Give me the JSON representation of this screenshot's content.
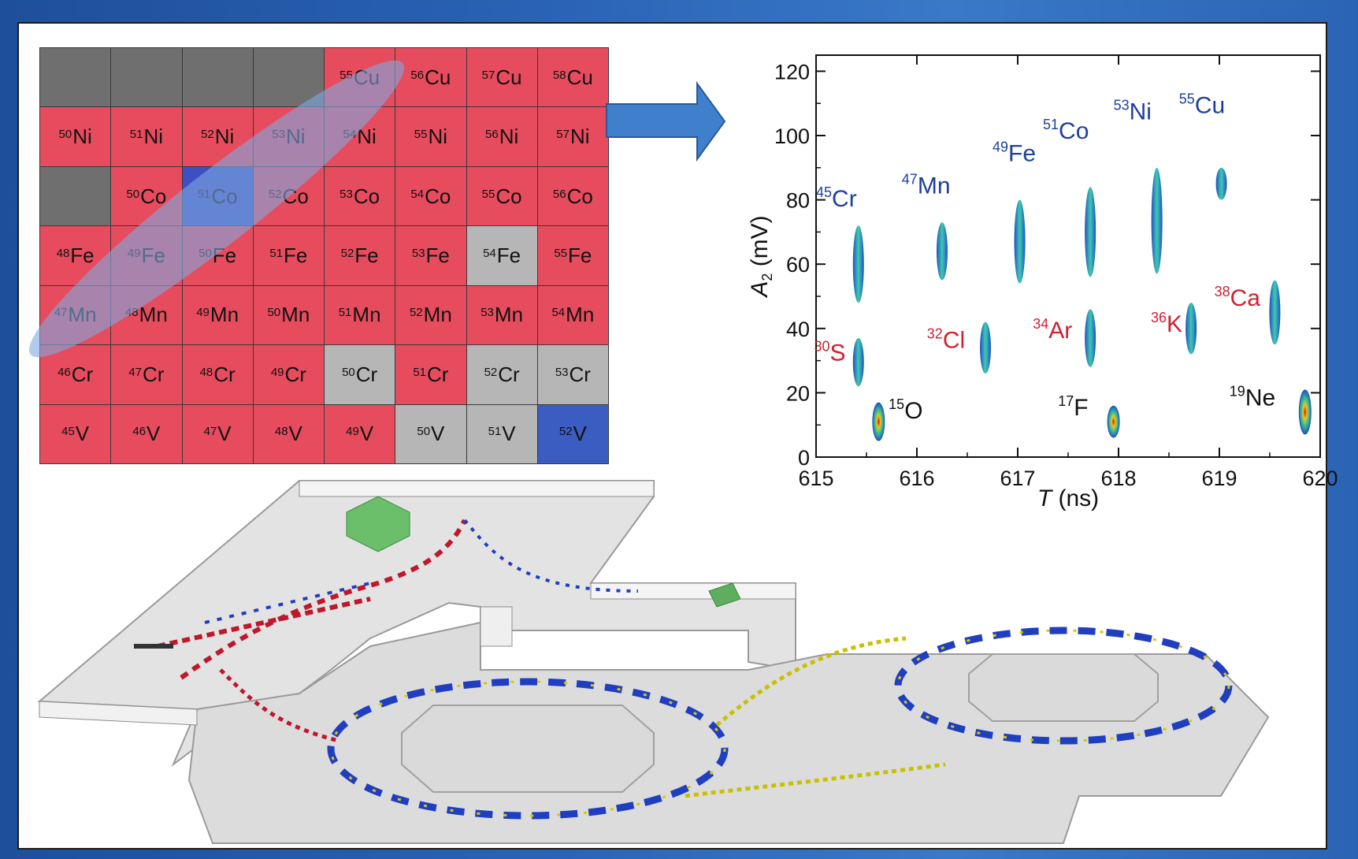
{
  "nuclide_chart": {
    "rows": [
      [
        {
          "a": "",
          "s": "",
          "c": "dark"
        },
        {
          "a": "",
          "s": "",
          "c": "dark"
        },
        {
          "a": "",
          "s": "",
          "c": "dark"
        },
        {
          "a": "",
          "s": "",
          "c": "dark"
        },
        {
          "a": "55",
          "s": "Cu",
          "c": "red"
        },
        {
          "a": "56",
          "s": "Cu",
          "c": "red"
        },
        {
          "a": "57",
          "s": "Cu",
          "c": "red"
        },
        {
          "a": "58",
          "s": "Cu",
          "c": "red"
        }
      ],
      [
        {
          "a": "50",
          "s": "Ni",
          "c": "red"
        },
        {
          "a": "51",
          "s": "Ni",
          "c": "red"
        },
        {
          "a": "52",
          "s": "Ni",
          "c": "red"
        },
        {
          "a": "53",
          "s": "Ni",
          "c": "red"
        },
        {
          "a": "54",
          "s": "Ni",
          "c": "red"
        },
        {
          "a": "55",
          "s": "Ni",
          "c": "red"
        },
        {
          "a": "56",
          "s": "Ni",
          "c": "red"
        },
        {
          "a": "57",
          "s": "Ni",
          "c": "red"
        }
      ],
      [
        {
          "a": "",
          "s": "",
          "c": "dark"
        },
        {
          "a": "50",
          "s": "Co",
          "c": "red"
        },
        {
          "a": "51",
          "s": "Co",
          "c": "blue"
        },
        {
          "a": "52",
          "s": "Co",
          "c": "red"
        },
        {
          "a": "53",
          "s": "Co",
          "c": "red"
        },
        {
          "a": "54",
          "s": "Co",
          "c": "red"
        },
        {
          "a": "55",
          "s": "Co",
          "c": "red"
        },
        {
          "a": "56",
          "s": "Co",
          "c": "red"
        }
      ],
      [
        {
          "a": "48",
          "s": "Fe",
          "c": "red"
        },
        {
          "a": "49",
          "s": "Fe",
          "c": "red"
        },
        {
          "a": "50",
          "s": "Fe",
          "c": "red"
        },
        {
          "a": "51",
          "s": "Fe",
          "c": "red"
        },
        {
          "a": "52",
          "s": "Fe",
          "c": "red"
        },
        {
          "a": "53",
          "s": "Fe",
          "c": "red"
        },
        {
          "a": "54",
          "s": "Fe",
          "c": "light"
        },
        {
          "a": "55",
          "s": "Fe",
          "c": "red"
        }
      ],
      [
        {
          "a": "47",
          "s": "Mn",
          "c": "red"
        },
        {
          "a": "48",
          "s": "Mn",
          "c": "red"
        },
        {
          "a": "49",
          "s": "Mn",
          "c": "red"
        },
        {
          "a": "50",
          "s": "Mn",
          "c": "red"
        },
        {
          "a": "51",
          "s": "Mn",
          "c": "red"
        },
        {
          "a": "52",
          "s": "Mn",
          "c": "red"
        },
        {
          "a": "53",
          "s": "Mn",
          "c": "red"
        },
        {
          "a": "54",
          "s": "Mn",
          "c": "red"
        }
      ],
      [
        {
          "a": "46",
          "s": "Cr",
          "c": "red"
        },
        {
          "a": "47",
          "s": "Cr",
          "c": "red"
        },
        {
          "a": "48",
          "s": "Cr",
          "c": "red"
        },
        {
          "a": "49",
          "s": "Cr",
          "c": "red"
        },
        {
          "a": "50",
          "s": "Cr",
          "c": "light"
        },
        {
          "a": "51",
          "s": "Cr",
          "c": "red"
        },
        {
          "a": "52",
          "s": "Cr",
          "c": "light"
        },
        {
          "a": "53",
          "s": "Cr",
          "c": "light"
        }
      ],
      [
        {
          "a": "45",
          "s": "V",
          "c": "red"
        },
        {
          "a": "46",
          "s": "V",
          "c": "red"
        },
        {
          "a": "47",
          "s": "V",
          "c": "red"
        },
        {
          "a": "48",
          "s": "V",
          "c": "red"
        },
        {
          "a": "49",
          "s": "V",
          "c": "red"
        },
        {
          "a": "50",
          "s": "V",
          "c": "light"
        },
        {
          "a": "51",
          "s": "V",
          "c": "light"
        },
        {
          "a": "52",
          "s": "V",
          "c": "lblue"
        }
      ]
    ],
    "colors": {
      "red": "#e64c5d",
      "dark": "#6f6f6f",
      "light": "#b6b6b6",
      "blue": "#3d4fc2",
      "lblue": "#3b5cc0",
      "band": "#7fa8e0"
    }
  },
  "chart_data": {
    "type": "scatter",
    "xlabel_italic": "T",
    "xlabel_unit": "(ns)",
    "ylabel_main": "A",
    "ylabel_sub": "2",
    "ylabel_unit": "(mV)",
    "xlim": [
      615,
      620
    ],
    "ylim": [
      0,
      125
    ],
    "xticks": [
      "615",
      "616",
      "617",
      "618",
      "619",
      "620"
    ],
    "yticks": [
      "0",
      "20",
      "40",
      "60",
      "80",
      "100",
      "120"
    ],
    "clusters": [
      {
        "name": "45Cr",
        "mass": "45",
        "sym": "Cr",
        "color": "blue",
        "x": 615.42,
        "ylow": 48,
        "yhigh": 72,
        "label_x": 615.0,
        "label_y": 78
      },
      {
        "name": "47Mn",
        "mass": "47",
        "sym": "Mn",
        "color": "blue",
        "x": 616.25,
        "ylow": 55,
        "yhigh": 73,
        "label_x": 615.85,
        "label_y": 82
      },
      {
        "name": "49Fe",
        "mass": "49",
        "sym": "Fe",
        "color": "blue",
        "x": 617.02,
        "ylow": 54,
        "yhigh": 80,
        "label_x": 616.75,
        "label_y": 92
      },
      {
        "name": "51Co",
        "mass": "51",
        "sym": "Co",
        "color": "blue",
        "x": 617.72,
        "ylow": 56,
        "yhigh": 84,
        "label_x": 617.25,
        "label_y": 99
      },
      {
        "name": "53Ni",
        "mass": "53",
        "sym": "Ni",
        "color": "blue",
        "x": 618.38,
        "ylow": 57,
        "yhigh": 90,
        "label_x": 617.95,
        "label_y": 105
      },
      {
        "name": "55Cu",
        "mass": "55",
        "sym": "Cu",
        "color": "blue",
        "x": 619.02,
        "ylow": 80,
        "yhigh": 90,
        "label_x": 618.6,
        "label_y": 107
      },
      {
        "name": "30S",
        "mass": "30",
        "sym": "S",
        "color": "red",
        "x": 615.42,
        "ylow": 22,
        "yhigh": 37,
        "label_x": 614.98,
        "label_y": 30
      },
      {
        "name": "32Cl",
        "mass": "32",
        "sym": "Cl",
        "color": "red",
        "x": 616.68,
        "ylow": 26,
        "yhigh": 42,
        "label_x": 616.1,
        "label_y": 34
      },
      {
        "name": "34Ar",
        "mass": "34",
        "sym": "Ar",
        "color": "red",
        "x": 617.72,
        "ylow": 28,
        "yhigh": 46,
        "label_x": 617.15,
        "label_y": 37
      },
      {
        "name": "36K",
        "mass": "36",
        "sym": "K",
        "color": "red",
        "x": 618.72,
        "ylow": 32,
        "yhigh": 48,
        "label_x": 618.32,
        "label_y": 39
      },
      {
        "name": "38Ca",
        "mass": "38",
        "sym": "Ca",
        "color": "red",
        "x": 619.55,
        "ylow": 35,
        "yhigh": 55,
        "label_x": 618.95,
        "label_y": 47
      },
      {
        "name": "15O",
        "mass": "15",
        "sym": "O",
        "color": "black",
        "x": 615.62,
        "ylow": 5,
        "yhigh": 17,
        "label_x": 615.72,
        "label_y": 12
      },
      {
        "name": "17F",
        "mass": "17",
        "sym": "F",
        "color": "black",
        "x": 617.95,
        "ylow": 6,
        "yhigh": 16,
        "label_x": 617.4,
        "label_y": 13
      },
      {
        "name": "19Ne",
        "mass": "19",
        "sym": "Ne",
        "color": "black",
        "x": 619.85,
        "ylow": 7,
        "yhigh": 21,
        "label_x": 619.1,
        "label_y": 16
      }
    ]
  },
  "label_colors": {
    "blue": "#1d3f9e",
    "red": "#d21f2f",
    "black": "#111111"
  },
  "arrow_color": "#3f7fcc"
}
